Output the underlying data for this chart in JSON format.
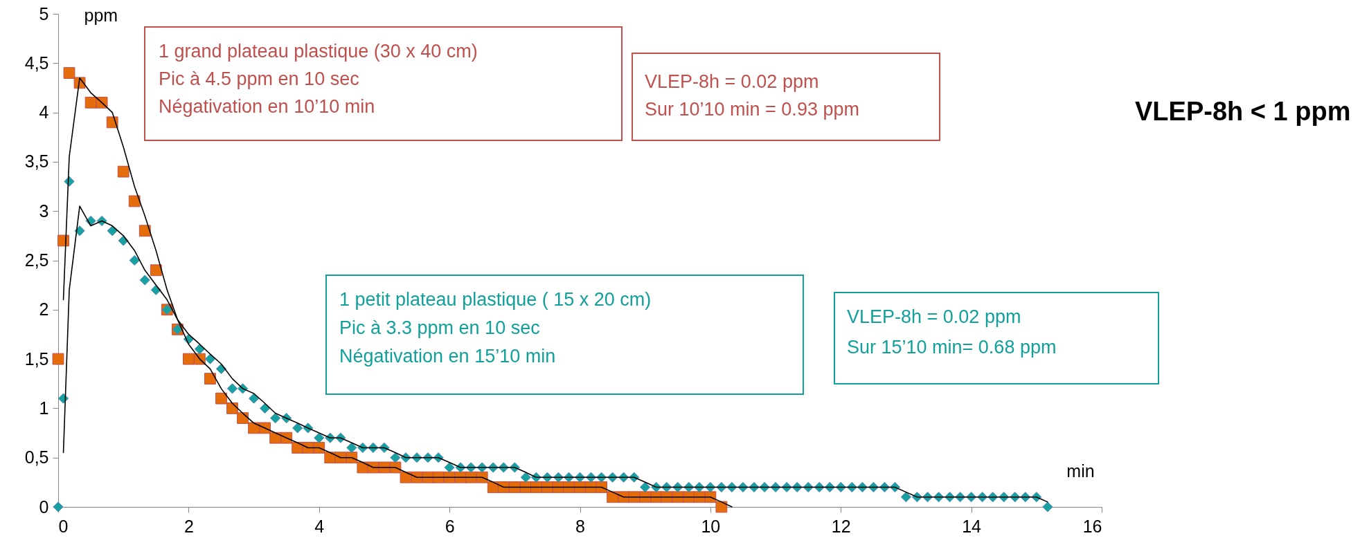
{
  "chart_data": {
    "type": "scatter",
    "xlabel": "min",
    "ylabel": "ppm",
    "xlim": [
      0,
      16
    ],
    "xticks": [
      0,
      2,
      4,
      6,
      8,
      10,
      12,
      14,
      16
    ],
    "ylim": [
      0,
      5
    ],
    "yticks": [
      0,
      {
        "value": 0.5,
        "label": "0,5"
      },
      1,
      {
        "value": 1.5,
        "label": "1,5"
      },
      2,
      {
        "value": 2.5,
        "label": "2,5"
      },
      3,
      {
        "value": 3.5,
        "label": "3,5"
      },
      4,
      {
        "value": 4.5,
        "label": "4,5"
      },
      5
    ],
    "grid": false,
    "series": [
      {
        "type": "scatter",
        "marker": "square",
        "color": "#e46c0a",
        "x": [
          0,
          0.08,
          0.17,
          0.33,
          0.5,
          0.67,
          0.83,
          1,
          1.17,
          1.33,
          1.5,
          1.67,
          1.83,
          2,
          2.17,
          2.33,
          2.5,
          2.67,
          2.83,
          3,
          3.17,
          3.33,
          3.5,
          3.67,
          3.83,
          4,
          4.17,
          4.33,
          4.5,
          4.67,
          4.83,
          5,
          5.17,
          5.33,
          5.5,
          5.67,
          5.83,
          6,
          6.17,
          6.33,
          6.5,
          6.67,
          6.83,
          7,
          7.17,
          7.33,
          7.5,
          7.67,
          7.83,
          8,
          8.17,
          8.33,
          8.5,
          8.67,
          8.83,
          9,
          9.17,
          9.33,
          9.5,
          9.67,
          9.83,
          10,
          10.17
        ],
        "values": [
          1.5,
          2.7,
          4.4,
          4.3,
          4.1,
          4.1,
          3.9,
          3.4,
          3.1,
          2.8,
          2.4,
          2.0,
          1.8,
          1.5,
          1.5,
          1.3,
          1.1,
          1.0,
          0.9,
          0.8,
          0.8,
          0.7,
          0.7,
          0.6,
          0.6,
          0.6,
          0.5,
          0.5,
          0.5,
          0.4,
          0.4,
          0.4,
          0.4,
          0.3,
          0.3,
          0.3,
          0.3,
          0.3,
          0.3,
          0.3,
          0.3,
          0.2,
          0.2,
          0.2,
          0.2,
          0.2,
          0.2,
          0.2,
          0.2,
          0.2,
          0.2,
          0.2,
          0.1,
          0.1,
          0.1,
          0.1,
          0.1,
          0.1,
          0.1,
          0.1,
          0.1,
          0.1,
          0
        ]
      },
      {
        "type": "scatter",
        "marker": "diamond",
        "color": "#17a2a0",
        "x": [
          0,
          0.08,
          0.17,
          0.33,
          0.5,
          0.67,
          0.83,
          1,
          1.17,
          1.33,
          1.5,
          1.67,
          1.83,
          2,
          2.17,
          2.33,
          2.5,
          2.67,
          2.83,
          3,
          3.17,
          3.33,
          3.5,
          3.67,
          3.83,
          4,
          4.17,
          4.33,
          4.5,
          4.67,
          4.83,
          5,
          5.17,
          5.33,
          5.5,
          5.67,
          5.83,
          6,
          6.17,
          6.33,
          6.5,
          6.67,
          6.83,
          7,
          7.17,
          7.33,
          7.5,
          7.67,
          7.83,
          8,
          8.17,
          8.33,
          8.5,
          8.67,
          8.83,
          9,
          9.17,
          9.33,
          9.5,
          9.67,
          9.83,
          10,
          10.17,
          10.33,
          10.5,
          10.67,
          10.83,
          11,
          11.17,
          11.33,
          11.5,
          11.67,
          11.83,
          12,
          12.17,
          12.33,
          12.5,
          12.67,
          12.83,
          13,
          13.17,
          13.33,
          13.5,
          13.67,
          13.83,
          14,
          14.17,
          14.33,
          14.5,
          14.67,
          14.83,
          15,
          15.17
        ],
        "values": [
          0,
          1.1,
          3.3,
          2.8,
          2.9,
          2.9,
          2.8,
          2.7,
          2.5,
          2.3,
          2.2,
          2.0,
          1.8,
          1.7,
          1.6,
          1.5,
          1.4,
          1.2,
          1.2,
          1.1,
          1.0,
          0.9,
          0.9,
          0.8,
          0.8,
          0.7,
          0.7,
          0.7,
          0.6,
          0.6,
          0.6,
          0.6,
          0.5,
          0.5,
          0.5,
          0.5,
          0.5,
          0.4,
          0.4,
          0.4,
          0.4,
          0.4,
          0.4,
          0.4,
          0.3,
          0.3,
          0.3,
          0.3,
          0.3,
          0.3,
          0.3,
          0.3,
          0.3,
          0.3,
          0.3,
          0.2,
          0.2,
          0.2,
          0.2,
          0.2,
          0.2,
          0.2,
          0.2,
          0.2,
          0.2,
          0.2,
          0.2,
          0.2,
          0.2,
          0.2,
          0.2,
          0.2,
          0.2,
          0.2,
          0.2,
          0.2,
          0.2,
          0.2,
          0.2,
          0.1,
          0.1,
          0.1,
          0.1,
          0.1,
          0.1,
          0.1,
          0.1,
          0.1,
          0.1,
          0.1,
          0.1,
          0.1,
          0
        ]
      },
      {
        "type": "line",
        "color": "#000000",
        "x": [
          0.08,
          0.17,
          0.33,
          0.5,
          0.67,
          0.83,
          1,
          1.17,
          1.33,
          1.5,
          1.67,
          1.83,
          2,
          2.17,
          2.33,
          2.5,
          2.67,
          2.83,
          3,
          3.17,
          3.33,
          3.5,
          3.67,
          3.83,
          4,
          4.17,
          4.33,
          4.5,
          4.67,
          4.83,
          5,
          5.17,
          5.33,
          5.5,
          5.67,
          5.83,
          6,
          6.17,
          6.33,
          6.5,
          6.67,
          6.83,
          7,
          7.17,
          7.33,
          7.5,
          7.67,
          7.83,
          8,
          8.17,
          8.33,
          8.5,
          8.67,
          8.83,
          9,
          9.17,
          9.33,
          9.5,
          9.67,
          9.83,
          10,
          10.17,
          10.33
        ],
        "values": [
          2.1,
          3.55,
          4.35,
          4.2,
          4.1,
          4.0,
          3.65,
          3.25,
          2.95,
          2.6,
          2.2,
          1.9,
          1.65,
          1.5,
          1.4,
          1.2,
          1.05,
          0.95,
          0.85,
          0.8,
          0.75,
          0.7,
          0.65,
          0.6,
          0.6,
          0.55,
          0.5,
          0.5,
          0.45,
          0.4,
          0.4,
          0.4,
          0.35,
          0.3,
          0.3,
          0.3,
          0.3,
          0.3,
          0.3,
          0.3,
          0.25,
          0.2,
          0.2,
          0.2,
          0.2,
          0.2,
          0.2,
          0.2,
          0.2,
          0.2,
          0.2,
          0.15,
          0.1,
          0.1,
          0.1,
          0.1,
          0.1,
          0.1,
          0.1,
          0.1,
          0.1,
          0.05,
          0
        ]
      },
      {
        "type": "line",
        "color": "#000000",
        "x": [
          0.08,
          0.17,
          0.33,
          0.5,
          0.67,
          0.83,
          1,
          1.17,
          1.33,
          1.5,
          1.67,
          1.83,
          2,
          2.17,
          2.33,
          2.5,
          2.67,
          2.83,
          3,
          3.17,
          3.33,
          3.5,
          3.67,
          3.83,
          4,
          4.17,
          4.33,
          4.5,
          4.67,
          4.83,
          5,
          5.17,
          5.33,
          5.5,
          5.67,
          5.83,
          6,
          6.17,
          6.33,
          6.5,
          6.67,
          6.83,
          7,
          7.17,
          7.33,
          7.5,
          7.67,
          7.83,
          8,
          8.17,
          8.33,
          8.5,
          8.67,
          8.83,
          9,
          9.17,
          9.33,
          9.5,
          9.67,
          9.83,
          10,
          10.17,
          10.33,
          10.5,
          10.67,
          10.83,
          11,
          11.17,
          11.33,
          11.5,
          11.67,
          11.83,
          12,
          12.17,
          12.33,
          12.5,
          12.67,
          12.83,
          13,
          13.17,
          13.33,
          13.5,
          13.67,
          13.83,
          14,
          14.17,
          14.33,
          14.5,
          14.67,
          14.83,
          15,
          15.17
        ],
        "values": [
          0.55,
          2.2,
          3.05,
          2.85,
          2.9,
          2.85,
          2.75,
          2.6,
          2.4,
          2.25,
          2.1,
          1.9,
          1.75,
          1.65,
          1.55,
          1.45,
          1.3,
          1.2,
          1.15,
          1.05,
          0.95,
          0.9,
          0.85,
          0.8,
          0.75,
          0.7,
          0.7,
          0.65,
          0.6,
          0.6,
          0.6,
          0.55,
          0.5,
          0.5,
          0.5,
          0.5,
          0.45,
          0.4,
          0.4,
          0.4,
          0.4,
          0.4,
          0.4,
          0.35,
          0.3,
          0.3,
          0.3,
          0.3,
          0.3,
          0.3,
          0.3,
          0.3,
          0.3,
          0.3,
          0.25,
          0.2,
          0.2,
          0.2,
          0.2,
          0.2,
          0.2,
          0.2,
          0.2,
          0.2,
          0.2,
          0.2,
          0.2,
          0.2,
          0.2,
          0.2,
          0.2,
          0.2,
          0.2,
          0.2,
          0.2,
          0.2,
          0.2,
          0.2,
          0.15,
          0.1,
          0.1,
          0.1,
          0.1,
          0.1,
          0.1,
          0.1,
          0.1,
          0.1,
          0.1,
          0.1,
          0.1,
          0.05
        ]
      }
    ],
    "annotations": [
      "1 grand plateau plastique (30 x 40 cm)\nPic à 4.5 ppm en 10 sec\nNégativation en 10’10 min",
      "VLEP-8h = 0.02 ppm\nSur 10’10 min = 0.93 ppm",
      "1 petit plateau plastique ( 15 x 20 cm)\nPic à 3.3 ppm en 10 sec\nNégativation en 15’10 min",
      "VLEP-8h = 0.02 ppm\nSur 15’10 min= 0.68 ppm",
      "VLEP-8h < 1 ppm"
    ]
  }
}
